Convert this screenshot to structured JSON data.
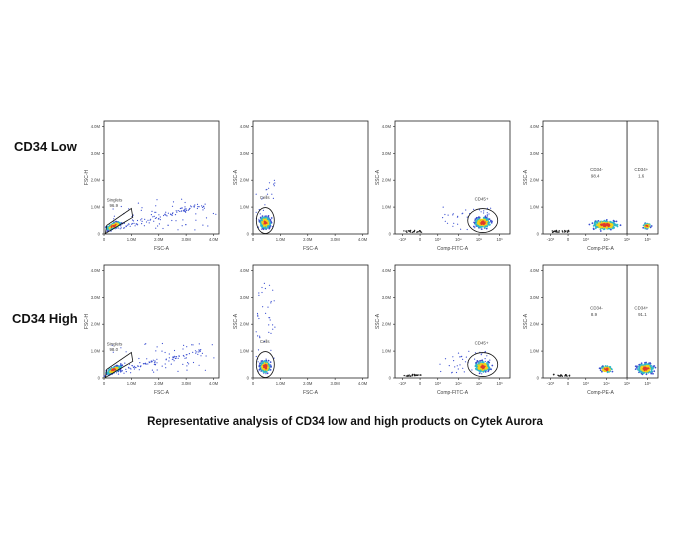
{
  "row_labels": [
    "CD34 Low",
    "CD34 High"
  ],
  "caption": "Representative analysis of CD34 low and high products on Cytek Aurora",
  "chart_data": [
    {
      "type": "scatter",
      "row": "CD34 Low",
      "panel": "singlets",
      "xlabel": "FSC-A",
      "ylabel": "FSC-H",
      "xticks": [
        "0",
        "1.0M",
        "2.0M",
        "3.0M",
        "4.0M"
      ],
      "yticks": [
        "0",
        "1.0M",
        "2.0M",
        "3.0M",
        "4.0M"
      ],
      "xlim": [
        0,
        4.2
      ],
      "ylim": [
        0,
        4.2
      ],
      "unit": "M",
      "gates": [
        {
          "label": "Singlets",
          "value": "96.9"
        }
      ]
    },
    {
      "type": "scatter",
      "row": "CD34 Low",
      "panel": "cells",
      "xlabel": "FSC-A",
      "ylabel": "SSC-A",
      "xticks": [
        "0",
        "1.0M",
        "2.0M",
        "3.0M",
        "4.0M"
      ],
      "yticks": [
        "0",
        "1.0M",
        "2.0M",
        "3.0M",
        "4.0M"
      ],
      "xlim": [
        0,
        4.2
      ],
      "ylim": [
        0,
        4.2
      ],
      "unit": "M",
      "gates": [
        {
          "label": "Cells",
          "value": ""
        }
      ]
    },
    {
      "type": "scatter",
      "row": "CD34 Low",
      "panel": "cd45",
      "xlabel": "Comp-FITC-A",
      "ylabel": "SSC-A",
      "xticks": [
        "-10³",
        "0",
        "10³",
        "10⁴",
        "10⁵",
        "10⁶"
      ],
      "yticks": [
        "0",
        "1.0M",
        "2.0M",
        "3.0M",
        "4.0M"
      ],
      "xlim": [
        -1.5,
        6.3
      ],
      "ylim": [
        0,
        4.2
      ],
      "xscale": "log",
      "gates": [
        {
          "label": "CD45+",
          "value": ""
        }
      ]
    },
    {
      "type": "scatter",
      "row": "CD34 Low",
      "panel": "cd34",
      "xlabel": "Comp-PE-A",
      "ylabel": "SSC-A",
      "xticks": [
        "-10³",
        "0",
        "10³",
        "10⁴",
        "10⁵",
        "10⁶"
      ],
      "yticks": [
        "0",
        "1.0M",
        "2.0M",
        "3.0M",
        "4.0M"
      ],
      "xlim": [
        -1.5,
        6.3
      ],
      "ylim": [
        0,
        4.2
      ],
      "xscale": "log",
      "gates": [
        {
          "label": "CD34-",
          "value": "98.4"
        },
        {
          "label": "CD34+",
          "value": "1.6"
        }
      ]
    },
    {
      "type": "scatter",
      "row": "CD34 High",
      "panel": "singlets",
      "xlabel": "FSC-A",
      "ylabel": "FSC-H",
      "xticks": [
        "0",
        "1.0M",
        "2.0M",
        "3.0M",
        "4.0M"
      ],
      "yticks": [
        "0",
        "1.0M",
        "2.0M",
        "3.0M",
        "4.0M"
      ],
      "xlim": [
        0,
        4.2
      ],
      "ylim": [
        0,
        4.2
      ],
      "unit": "M",
      "gates": [
        {
          "label": "Singlets",
          "value": "98.0"
        }
      ]
    },
    {
      "type": "scatter",
      "row": "CD34 High",
      "panel": "cells",
      "xlabel": "FSC-A",
      "ylabel": "SSC-A",
      "xticks": [
        "0",
        "1.0M",
        "2.0M",
        "3.0M",
        "4.0M"
      ],
      "yticks": [
        "0",
        "1.0M",
        "2.0M",
        "3.0M",
        "4.0M"
      ],
      "xlim": [
        0,
        4.2
      ],
      "ylim": [
        0,
        4.2
      ],
      "unit": "M",
      "gates": [
        {
          "label": "Cells",
          "value": ""
        }
      ]
    },
    {
      "type": "scatter",
      "row": "CD34 High",
      "panel": "cd45",
      "xlabel": "Comp-FITC-A",
      "ylabel": "SSC-A",
      "xticks": [
        "-10³",
        "0",
        "10³",
        "10⁴",
        "10⁵",
        "10⁶"
      ],
      "yticks": [
        "0",
        "1.0M",
        "2.0M",
        "3.0M",
        "4.0M"
      ],
      "xlim": [
        -1.5,
        6.3
      ],
      "ylim": [
        0,
        4.2
      ],
      "xscale": "log",
      "gates": [
        {
          "label": "CD45+",
          "value": ""
        }
      ]
    },
    {
      "type": "scatter",
      "row": "CD34 High",
      "panel": "cd34",
      "xlabel": "Comp-PE-A",
      "ylabel": "SSC-A",
      "xticks": [
        "-10³",
        "0",
        "10³",
        "10⁴",
        "10⁵",
        "10⁶"
      ],
      "yticks": [
        "0",
        "1.0M",
        "2.0M",
        "3.0M",
        "4.0M"
      ],
      "xlim": [
        -1.5,
        6.3
      ],
      "ylim": [
        0,
        4.2
      ],
      "xscale": "log",
      "gates": [
        {
          "label": "CD34-",
          "value": "8.9"
        },
        {
          "label": "CD34+",
          "value": "91.1"
        }
      ]
    }
  ],
  "colors": {
    "low": "#3b4fd0",
    "mid": "#2fb8c8",
    "high": "#f2d31a",
    "peak": "#e03a2a",
    "axis": "#222222"
  }
}
